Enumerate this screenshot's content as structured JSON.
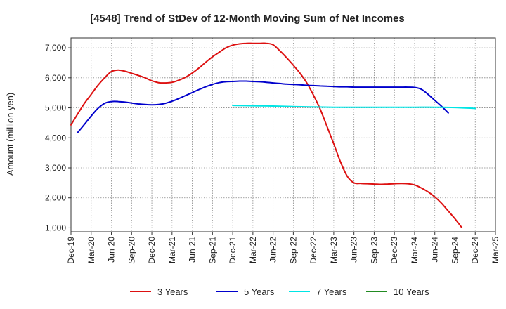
{
  "chart_data": {
    "type": "line",
    "title": "[4548]  Trend of StDev of 12-Month Moving Sum of Net Incomes",
    "xlabel": "",
    "ylabel": "Amount (million yen)",
    "ylim": [
      870,
      7330
    ],
    "y_ticks": [
      1000,
      2000,
      3000,
      4000,
      5000,
      6000,
      7000
    ],
    "y_tick_labels": [
      "1,000",
      "2,000",
      "3,000",
      "4,000",
      "5,000",
      "6,000",
      "7,000"
    ],
    "x_range": [
      "2019-12",
      "2025-03"
    ],
    "x_ticks": [
      "2019-12",
      "2020-03",
      "2020-06",
      "2020-09",
      "2020-12",
      "2021-03",
      "2021-06",
      "2021-09",
      "2021-12",
      "2022-03",
      "2022-06",
      "2022-09",
      "2022-12",
      "2023-03",
      "2023-06",
      "2023-09",
      "2023-12",
      "2024-03",
      "2024-06",
      "2024-09",
      "2024-12",
      "2025-03"
    ],
    "x_tick_labels": [
      "Dec-19",
      "Mar-20",
      "Jun-20",
      "Sep-20",
      "Dec-20",
      "Mar-21",
      "Jun-21",
      "Sep-21",
      "Dec-21",
      "Mar-22",
      "Jun-22",
      "Sep-22",
      "Dec-22",
      "Mar-23",
      "Jun-23",
      "Sep-23",
      "Dec-23",
      "Mar-24",
      "Jun-24",
      "Sep-24",
      "Dec-24",
      "Mar-25"
    ],
    "grid": true,
    "legend_position": "bottom",
    "series": [
      {
        "name": "3 Years",
        "color": "#dd1111",
        "points": [
          [
            "2019-12",
            4430
          ],
          [
            "2020-01",
            4800
          ],
          [
            "2020-02",
            5150
          ],
          [
            "2020-03",
            5450
          ],
          [
            "2020-04",
            5750
          ],
          [
            "2020-05",
            6000
          ],
          [
            "2020-06",
            6210
          ],
          [
            "2020-07",
            6260
          ],
          [
            "2020-08",
            6220
          ],
          [
            "2020-09",
            6150
          ],
          [
            "2020-10",
            6080
          ],
          [
            "2020-11",
            6000
          ],
          [
            "2020-12",
            5900
          ],
          [
            "2021-01",
            5840
          ],
          [
            "2021-02",
            5830
          ],
          [
            "2021-03",
            5850
          ],
          [
            "2021-04",
            5920
          ],
          [
            "2021-05",
            6020
          ],
          [
            "2021-06",
            6160
          ],
          [
            "2021-07",
            6330
          ],
          [
            "2021-08",
            6520
          ],
          [
            "2021-09",
            6700
          ],
          [
            "2021-10",
            6850
          ],
          [
            "2021-11",
            7000
          ],
          [
            "2021-12",
            7090
          ],
          [
            "2022-01",
            7130
          ],
          [
            "2022-02",
            7150
          ],
          [
            "2022-03",
            7150
          ],
          [
            "2022-04",
            7150
          ],
          [
            "2022-05",
            7150
          ],
          [
            "2022-06",
            7100
          ],
          [
            "2022-07",
            6900
          ],
          [
            "2022-08",
            6670
          ],
          [
            "2022-09",
            6420
          ],
          [
            "2022-10",
            6150
          ],
          [
            "2022-11",
            5830
          ],
          [
            "2022-12",
            5420
          ],
          [
            "2023-01",
            4950
          ],
          [
            "2023-02",
            4380
          ],
          [
            "2023-03",
            3800
          ],
          [
            "2023-04",
            3200
          ],
          [
            "2023-05",
            2720
          ],
          [
            "2023-06",
            2500
          ],
          [
            "2023-07",
            2480
          ],
          [
            "2023-08",
            2470
          ],
          [
            "2023-09",
            2460
          ],
          [
            "2023-10",
            2450
          ],
          [
            "2023-11",
            2460
          ],
          [
            "2023-12",
            2470
          ],
          [
            "2024-01",
            2480
          ],
          [
            "2024-02",
            2470
          ],
          [
            "2024-03",
            2430
          ],
          [
            "2024-04",
            2330
          ],
          [
            "2024-05",
            2200
          ],
          [
            "2024-06",
            2030
          ],
          [
            "2024-07",
            1820
          ],
          [
            "2024-08",
            1560
          ],
          [
            "2024-09",
            1300
          ],
          [
            "2024-10",
            1010
          ]
        ]
      },
      {
        "name": "5 Years",
        "color": "#0000cc",
        "points": [
          [
            "2020-01",
            4180
          ],
          [
            "2020-02",
            4450
          ],
          [
            "2020-03",
            4730
          ],
          [
            "2020-04",
            4980
          ],
          [
            "2020-05",
            5150
          ],
          [
            "2020-06",
            5210
          ],
          [
            "2020-07",
            5210
          ],
          [
            "2020-08",
            5190
          ],
          [
            "2020-09",
            5160
          ],
          [
            "2020-10",
            5130
          ],
          [
            "2020-11",
            5110
          ],
          [
            "2020-12",
            5100
          ],
          [
            "2021-01",
            5110
          ],
          [
            "2021-02",
            5150
          ],
          [
            "2021-03",
            5220
          ],
          [
            "2021-04",
            5310
          ],
          [
            "2021-05",
            5410
          ],
          [
            "2021-06",
            5510
          ],
          [
            "2021-07",
            5610
          ],
          [
            "2021-08",
            5700
          ],
          [
            "2021-09",
            5780
          ],
          [
            "2021-10",
            5840
          ],
          [
            "2021-11",
            5870
          ],
          [
            "2021-12",
            5880
          ],
          [
            "2022-01",
            5890
          ],
          [
            "2022-02",
            5890
          ],
          [
            "2022-03",
            5880
          ],
          [
            "2022-04",
            5870
          ],
          [
            "2022-05",
            5850
          ],
          [
            "2022-06",
            5830
          ],
          [
            "2022-07",
            5810
          ],
          [
            "2022-08",
            5790
          ],
          [
            "2022-09",
            5780
          ],
          [
            "2022-10",
            5770
          ],
          [
            "2022-11",
            5750
          ],
          [
            "2022-12",
            5740
          ],
          [
            "2023-01",
            5730
          ],
          [
            "2023-02",
            5720
          ],
          [
            "2023-03",
            5710
          ],
          [
            "2023-04",
            5700
          ],
          [
            "2023-05",
            5700
          ],
          [
            "2023-06",
            5690
          ],
          [
            "2023-07",
            5690
          ],
          [
            "2023-08",
            5690
          ],
          [
            "2023-09",
            5690
          ],
          [
            "2023-10",
            5690
          ],
          [
            "2023-11",
            5690
          ],
          [
            "2023-12",
            5690
          ],
          [
            "2024-01",
            5690
          ],
          [
            "2024-02",
            5690
          ],
          [
            "2024-03",
            5680
          ],
          [
            "2024-04",
            5620
          ],
          [
            "2024-05",
            5450
          ],
          [
            "2024-06",
            5250
          ],
          [
            "2024-07",
            5050
          ],
          [
            "2024-08",
            4830
          ]
        ]
      },
      {
        "name": "7 Years",
        "color": "#00e5e5",
        "points": [
          [
            "2021-12",
            5080
          ],
          [
            "2022-03",
            5070
          ],
          [
            "2022-06",
            5060
          ],
          [
            "2022-09",
            5040
          ],
          [
            "2022-12",
            5030
          ],
          [
            "2023-03",
            5020
          ],
          [
            "2023-06",
            5020
          ],
          [
            "2023-09",
            5020
          ],
          [
            "2023-12",
            5020
          ],
          [
            "2024-03",
            5020
          ],
          [
            "2024-06",
            5020
          ],
          [
            "2024-09",
            5010
          ],
          [
            "2024-12",
            4980
          ]
        ]
      },
      {
        "name": "10 Years",
        "color": "#228b22",
        "points": []
      }
    ]
  }
}
